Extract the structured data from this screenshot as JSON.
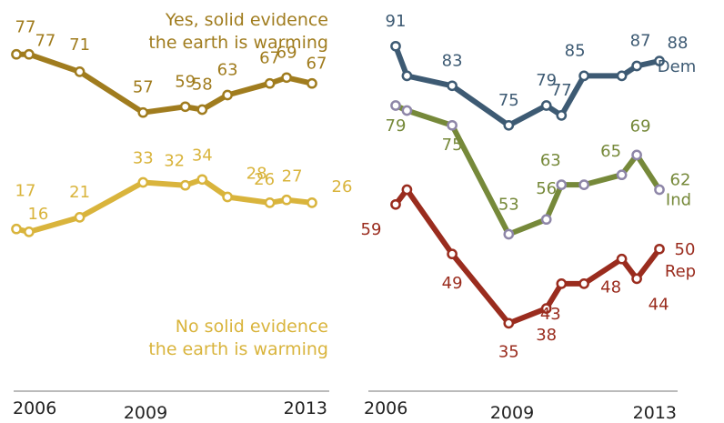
{
  "chart_data": [
    {
      "type": "line",
      "title": "",
      "x": [
        2006.0,
        2006.3,
        2007.5,
        2009.0,
        2010.0,
        2010.4,
        2011.0,
        2012.0,
        2012.4,
        2013.0
      ],
      "series": [
        {
          "name": "Yes, solid evidence the earth is warming",
          "color": "#a07c1e",
          "values": [
            77,
            77,
            71,
            57,
            59,
            58,
            63,
            67,
            69,
            67
          ],
          "label_lines": [
            "Yes, solid evidence",
            "the earth is warming"
          ]
        },
        {
          "name": "No solid evidence the earth is warming",
          "color": "#d9b43c",
          "values": [
            17,
            16,
            21,
            33,
            32,
            34,
            28,
            26,
            27,
            26
          ],
          "label_lines": [
            "No solid evidence",
            "the earth is warming"
          ]
        }
      ],
      "xaxis_ticks": [
        "2006",
        "2009",
        "2013"
      ],
      "grid": false
    },
    {
      "type": "line",
      "title": "",
      "x": [
        2006.0,
        2006.3,
        2007.5,
        2009.0,
        2010.0,
        2010.4,
        2011.0,
        2012.0,
        2012.4,
        2013.0
      ],
      "series": [
        {
          "name": "Dem",
          "color": "#3d5a73",
          "values": [
            91,
            85,
            83,
            75,
            79,
            77,
            85,
            85,
            87,
            88
          ]
        },
        {
          "name": "Ind",
          "color": "#76893a",
          "values": [
            79,
            78,
            75,
            53,
            56,
            63,
            63,
            65,
            69,
            62
          ]
        },
        {
          "name": "Rep",
          "color": "#9a2c1e",
          "values": [
            59,
            62,
            49,
            35,
            38,
            43,
            43,
            48,
            44,
            50
          ]
        }
      ],
      "xaxis_ticks": [
        "2006",
        "2009",
        "2013"
      ],
      "grid": false
    }
  ]
}
